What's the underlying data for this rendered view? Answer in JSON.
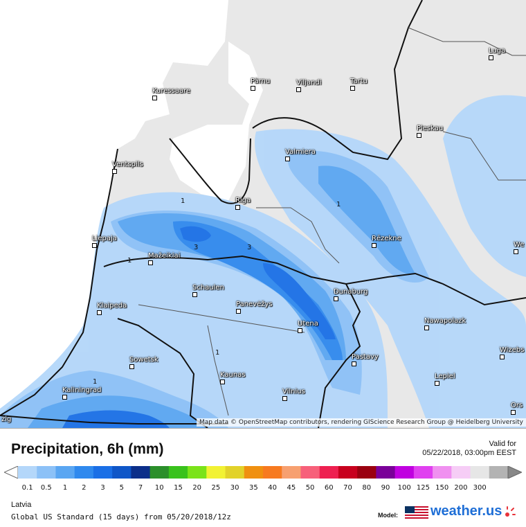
{
  "map": {
    "attribution": "Map data © OpenStreetMap contributors, rendering GIScience Research Group @ Heidelberg University",
    "cities": [
      {
        "name": "Pärnu",
        "dot": "left"
      },
      {
        "name": "Viljandi",
        "dot": "left"
      },
      {
        "name": "Tartu",
        "dot": "left"
      },
      {
        "name": "Luga",
        "dot": "left"
      },
      {
        "name": "Kuressaare",
        "dot": "left"
      },
      {
        "name": "Pleskau",
        "dot": "left"
      },
      {
        "name": "Valmiera",
        "dot": "left"
      },
      {
        "name": "Ventspils",
        "dot": "left"
      },
      {
        "name": "Riga",
        "dot": "left"
      },
      {
        "name": "Liepaja",
        "dot": "left"
      },
      {
        "name": "Rēzekne",
        "dot": "left"
      },
      {
        "name": "Mažeikiai",
        "dot": "left"
      },
      {
        "name": "Schaulen",
        "dot": "left"
      },
      {
        "name": "Klaipeda",
        "dot": "left"
      },
      {
        "name": "Panevėžys",
        "dot": "left"
      },
      {
        "name": "Dunaburg",
        "dot": "left"
      },
      {
        "name": "Utena",
        "dot": "left"
      },
      {
        "name": "Nawapolazk",
        "dot": "left"
      },
      {
        "name": "Sowetsk",
        "dot": "left"
      },
      {
        "name": "Pastavy",
        "dot": "left"
      },
      {
        "name": "Wizebs",
        "dot": "left"
      },
      {
        "name": "Kaunas",
        "dot": "left"
      },
      {
        "name": "Lepiel",
        "dot": "left"
      },
      {
        "name": "Kaliningrad",
        "dot": "left"
      },
      {
        "name": "Vilnius",
        "dot": "left"
      },
      {
        "name": "We",
        "dot": "left"
      },
      {
        "name": "Ors",
        "dot": "left"
      },
      {
        "name": "zig",
        "dot": "left"
      }
    ],
    "contour_labels": [
      "1",
      "1",
      "1",
      "3",
      "3",
      "1",
      "1"
    ]
  },
  "legend": {
    "title": "Precipitation, 6h (mm)",
    "valid_for_label": "Valid for",
    "valid_time": "05/22/2018, 03:00pm EEST",
    "scale_values": [
      "0.1",
      "0.5",
      "1",
      "2",
      "3",
      "5",
      "7",
      "10",
      "15",
      "20",
      "25",
      "30",
      "35",
      "40",
      "45",
      "50",
      "60",
      "70",
      "80",
      "90",
      "100",
      "125",
      "150",
      "200",
      "300"
    ],
    "scale_colors": [
      "#b4d7fa",
      "#8cc1f7",
      "#5aa6f2",
      "#2f89ee",
      "#1a6fe6",
      "#0f56c8",
      "#0c2f8a",
      "#2b8f2b",
      "#39c21c",
      "#7be31a",
      "#f2f233",
      "#e2d22a",
      "#f09010",
      "#f77a20",
      "#f7a070",
      "#f7607a",
      "#ee2050",
      "#c8001e",
      "#9a0010",
      "#7a0099",
      "#c000e0",
      "#e040f0",
      "#f090f0",
      "#f6cdf6",
      "#e6e6e6",
      "#b3b3b3"
    ],
    "region": "Latvia",
    "run_info": "Global US Standard (15 days) from 05/20/2018/12z",
    "model_label": "Model:",
    "brand": "weather.us",
    "accent": "#1e6ed6"
  }
}
